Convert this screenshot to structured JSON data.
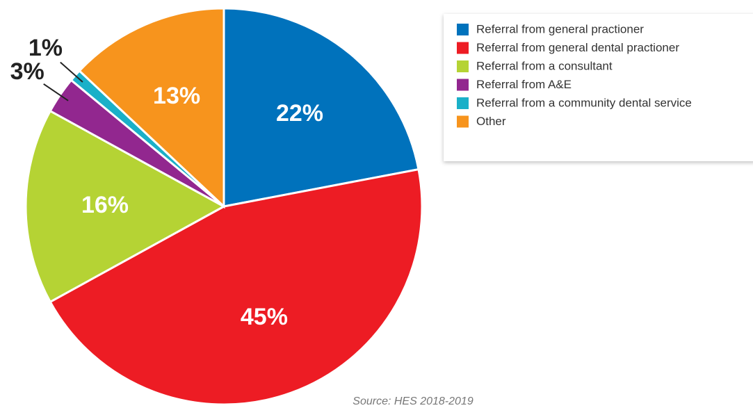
{
  "chart_data": {
    "type": "pie",
    "categories": [
      "Referral from general practioner",
      "Referral from general dental practioner",
      "Referral from a consultant",
      "Referral from A&E",
      "Referral from a community dental service",
      "Other"
    ],
    "values": [
      22,
      45,
      16,
      3,
      1,
      13
    ],
    "value_labels": [
      "22%",
      "45%",
      "16%",
      "3%",
      "1%",
      "13%"
    ],
    "colors": [
      "#0072bc",
      "#ed1c24",
      "#b5d334",
      "#92278f",
      "#1ab0c8",
      "#f7941d"
    ],
    "legend": "top-right",
    "source": "Source: HES 2018-2019"
  }
}
